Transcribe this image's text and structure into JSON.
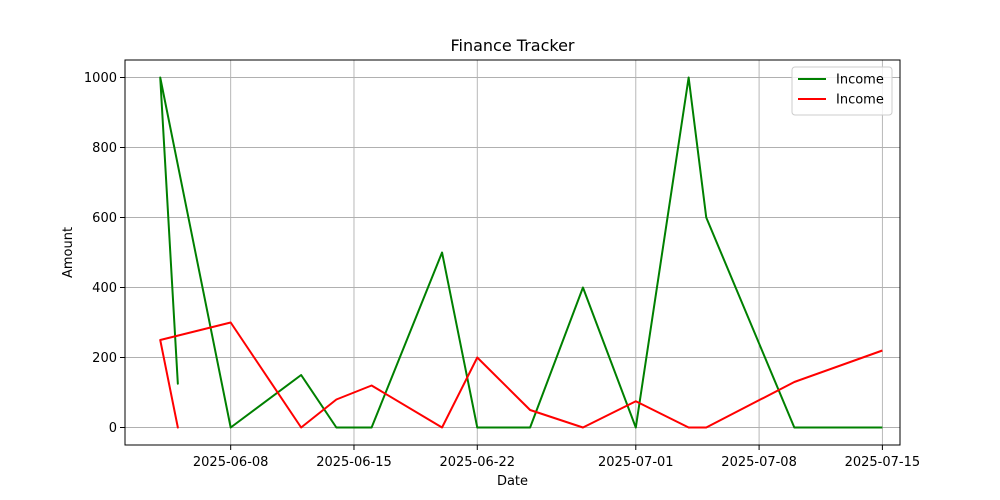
{
  "chart_data": {
    "type": "line",
    "title": "Finance Tracker",
    "xlabel": "Date",
    "ylabel": "Amount",
    "grid": true,
    "legend_position": "top-right",
    "x_type": "date",
    "xlim": [
      "2025-06-02",
      "2025-07-16"
    ],
    "ylim": [
      -50,
      1050
    ],
    "x_ticks": [
      "2025-06-08",
      "2025-06-15",
      "2025-06-22",
      "2025-07-01",
      "2025-07-08",
      "2025-07-15"
    ],
    "y_ticks": [
      0,
      200,
      400,
      600,
      800,
      1000
    ],
    "series": [
      {
        "name": "Income",
        "color": "#008000",
        "points": [
          {
            "x": "2025-06-04",
            "y": 1000
          },
          {
            "x": "2025-06-05",
            "y": 125
          },
          {
            "x": "2025-06-04",
            "y": 1000
          },
          {
            "x": "2025-06-08",
            "y": 0
          },
          {
            "x": "2025-06-12",
            "y": 150
          },
          {
            "x": "2025-06-14",
            "y": 0
          },
          {
            "x": "2025-06-16",
            "y": 0
          },
          {
            "x": "2025-06-20",
            "y": 500
          },
          {
            "x": "2025-06-22",
            "y": 0
          },
          {
            "x": "2025-06-25",
            "y": 0
          },
          {
            "x": "2025-06-28",
            "y": 400
          },
          {
            "x": "2025-07-01",
            "y": 0
          },
          {
            "x": "2025-07-04",
            "y": 1000
          },
          {
            "x": "2025-07-05",
            "y": 600
          },
          {
            "x": "2025-07-10",
            "y": 0
          },
          {
            "x": "2025-07-15",
            "y": 0
          }
        ]
      },
      {
        "name": "Income",
        "color": "#ff0000",
        "points": [
          {
            "x": "2025-06-04",
            "y": 250
          },
          {
            "x": "2025-06-05",
            "y": 0
          },
          {
            "x": "2025-06-04",
            "y": 250
          },
          {
            "x": "2025-06-08",
            "y": 300
          },
          {
            "x": "2025-06-12",
            "y": 0
          },
          {
            "x": "2025-06-14",
            "y": 80
          },
          {
            "x": "2025-06-16",
            "y": 120
          },
          {
            "x": "2025-06-20",
            "y": 0
          },
          {
            "x": "2025-06-22",
            "y": 200
          },
          {
            "x": "2025-06-25",
            "y": 50
          },
          {
            "x": "2025-06-28",
            "y": 0
          },
          {
            "x": "2025-07-01",
            "y": 75
          },
          {
            "x": "2025-07-04",
            "y": 0
          },
          {
            "x": "2025-07-05",
            "y": 0
          },
          {
            "x": "2025-07-10",
            "y": 130
          },
          {
            "x": "2025-07-15",
            "y": 220
          }
        ]
      }
    ]
  }
}
